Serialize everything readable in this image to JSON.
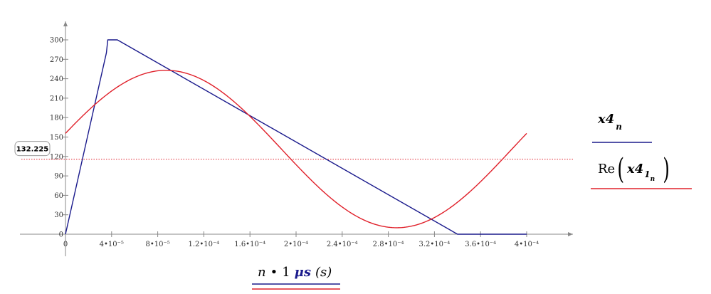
{
  "chart_data": {
    "type": "line",
    "xlabel": {
      "parts": [
        {
          "text": "n",
          "style": "italic",
          "color": "#000000"
        },
        {
          "text": "•",
          "style": "normal",
          "color": "#000000"
        },
        {
          "text": "1",
          "style": "normal",
          "color": "#000000"
        },
        {
          "text": "μs",
          "style": "bold-italic",
          "color": "#1a1a8c"
        },
        {
          "text": "(s)",
          "style": "italic",
          "color": "#000000"
        }
      ],
      "underline_colors": [
        "#1a1a8c",
        "#e0202a"
      ]
    },
    "x_ticks": [
      {
        "value": 0,
        "label": "0"
      },
      {
        "value": 4e-05,
        "label": "4•10⁻⁵"
      },
      {
        "value": 8e-05,
        "label": "8•10⁻⁵"
      },
      {
        "value": 0.00012,
        "label": "1.2•10⁻⁴"
      },
      {
        "value": 0.00016,
        "label": "1.6•10⁻⁴"
      },
      {
        "value": 0.0002,
        "label": "2•10⁻⁴"
      },
      {
        "value": 0.00024,
        "label": "2.4•10⁻⁴"
      },
      {
        "value": 0.00028,
        "label": "2.8•10⁻⁴"
      },
      {
        "value": 0.00032,
        "label": "3.2•10⁻⁴"
      },
      {
        "value": 0.00036,
        "label": "3.6•10⁻⁴"
      },
      {
        "value": 0.0004,
        "label": "4•10⁻⁴"
      }
    ],
    "y_ticks": [
      0,
      30,
      60,
      90,
      120,
      150,
      180,
      210,
      240,
      270,
      300
    ],
    "xlim": [
      0,
      0.000443
    ],
    "ylim": [
      0,
      330
    ],
    "marker_line": {
      "value": 132.225,
      "label": "132.225",
      "color": "#e0202a"
    },
    "series": [
      {
        "name": "x4_n",
        "legend": {
          "base": "x4",
          "subscript": "n"
        },
        "color": "#1a1a8c",
        "x": [
          0,
          3.55e-05,
          3.67e-05,
          4e-05,
          4.5e-05,
          0.00034,
          0.0004
        ],
        "y": [
          0,
          280,
          300,
          300,
          300,
          0,
          0
        ]
      },
      {
        "name": "Re(x4_1_n)",
        "legend": {
          "func": "Re",
          "base": "x4",
          "subscript": "1",
          "subsubscript": "n"
        },
        "color": "#e0202a",
        "function": {
          "form": "offset + amplitude*sin(2*pi*x/period + phase)",
          "offset": 131.5,
          "amplitude": 121.5,
          "period": 0.0004,
          "phase": 0.2
        },
        "x_range": [
          0,
          0.0004
        ]
      }
    ],
    "grid": false,
    "legend_position": "right"
  }
}
